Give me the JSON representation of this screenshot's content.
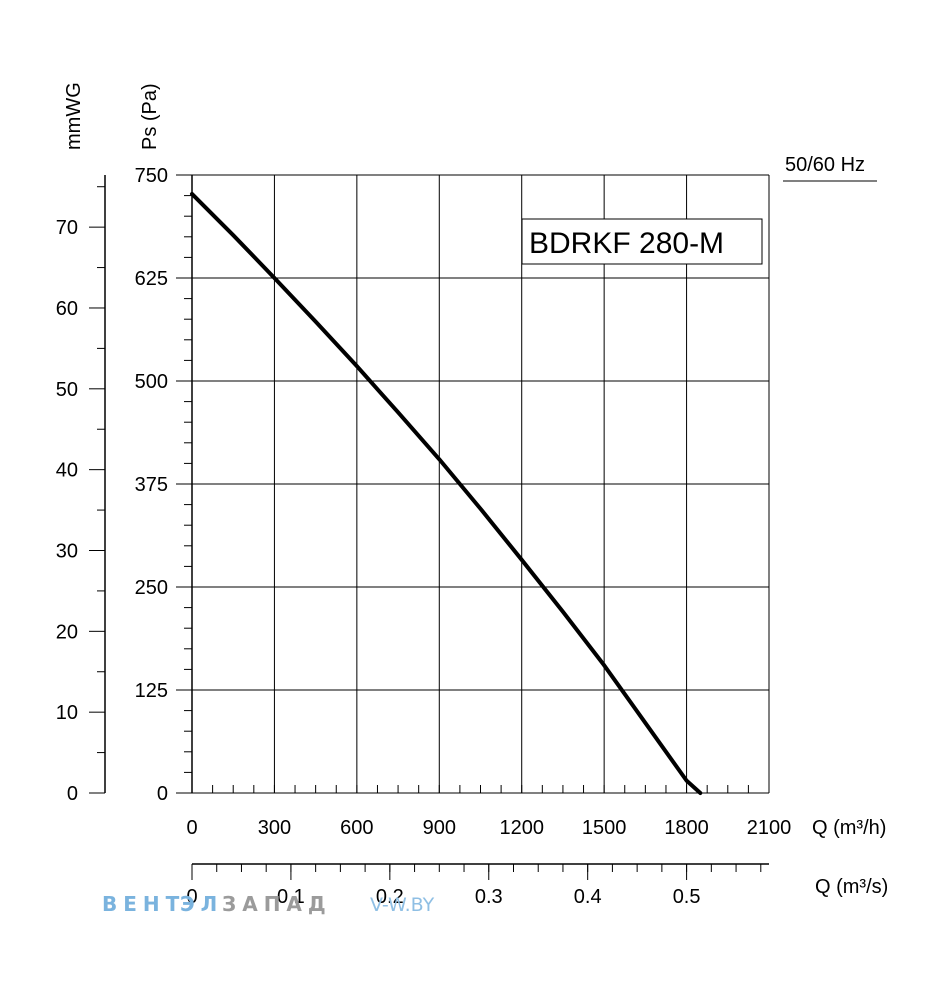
{
  "chart_data": {
    "type": "line",
    "model": "BDRKF 280-M",
    "frequency": "50/60 Hz",
    "ylabel_primary": "Ps (Pa)",
    "ylabel_secondary": "mmWG",
    "xlabel_primary": "Q (m³/h)",
    "xlabel_secondary": "Q (m³/s)",
    "xlim": [
      0,
      2100
    ],
    "ylim": [
      0,
      750
    ],
    "ylim_secondary": [
      0,
      76.45
    ],
    "xlim_secondary": [
      0,
      0.5833
    ],
    "x_ticks": [
      "0",
      "300",
      "600",
      "900",
      "1200",
      "1500",
      "1800",
      "2100"
    ],
    "y_ticks": [
      "0",
      "125",
      "250",
      "375",
      "500",
      "625",
      "750"
    ],
    "y_ticks_secondary": [
      "0",
      "10",
      "20",
      "30",
      "40",
      "50",
      "60",
      "70"
    ],
    "x_ticks_secondary": [
      "0",
      "0.1",
      "0.2",
      "0.3",
      "0.4",
      "0.5"
    ],
    "grid": true,
    "series": [
      {
        "color": "#000000",
        "x": [
          0,
          150,
          300,
          450,
          600,
          750,
          900,
          1050,
          1200,
          1350,
          1500,
          1650,
          1800,
          1850
        ],
        "y": [
          727,
          677,
          625,
          572,
          518,
          462,
          405,
          345,
          283,
          220,
          155,
          85,
          15,
          0
        ]
      }
    ]
  },
  "watermark": {
    "part1": "ВЕНТ",
    "part2": "ЭЛ",
    "part3": "ЗАПАД",
    "part4": "V-W.BY"
  }
}
